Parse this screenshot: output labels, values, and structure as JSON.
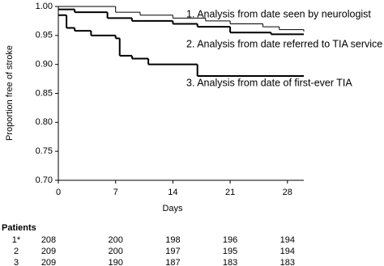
{
  "chart_data": {
    "type": "step",
    "xlabel": "Days",
    "ylabel": "Proportion free of stroke",
    "xlim": [
      0,
      30
    ],
    "ylim": [
      0.7,
      1.0
    ],
    "xticks": [
      0,
      7,
      14,
      21,
      28
    ],
    "yticks": [
      {
        "value": 0.7,
        "label": "0.70"
      },
      0.75,
      {
        "value": 0.8,
        "label": "0.80"
      },
      0.85,
      {
        "value": 0.9,
        "label": "0.90"
      },
      0.95,
      {
        "value": 1.0,
        "label": "1.00"
      }
    ],
    "series": [
      {
        "name": "1. Analysis from date seen by neurologist",
        "color": "#000",
        "width": 1,
        "x": [
          0,
          7,
          10,
          14,
          18,
          21,
          25,
          27,
          30
        ],
        "values": [
          1.0,
          0.99,
          0.985,
          0.98,
          0.975,
          0.97,
          0.965,
          0.96,
          0.957
        ]
      },
      {
        "name": "2. Analysis from date referred to TIA service",
        "color": "#000",
        "width": 2,
        "x": [
          0,
          2,
          6,
          9,
          14,
          17,
          21,
          26,
          30
        ],
        "values": [
          0.995,
          0.99,
          0.98,
          0.975,
          0.97,
          0.965,
          0.955,
          0.952,
          0.952
        ]
      },
      {
        "name": "3. Analysis from date of first-ever TIA",
        "color": "#000",
        "width": 2,
        "x": [
          0,
          1,
          2,
          4,
          7,
          7.5,
          9,
          11,
          17,
          30
        ],
        "values": [
          0.985,
          0.963,
          0.958,
          0.95,
          0.945,
          0.915,
          0.91,
          0.9,
          0.88,
          0.88
        ]
      }
    ]
  },
  "risk_table": {
    "title": "Patients",
    "rows": [
      {
        "label": "1*",
        "values": [
          "208",
          "200",
          "198",
          "196",
          "194"
        ]
      },
      {
        "label": "2",
        "values": [
          "209",
          "200",
          "197",
          "195",
          "194"
        ]
      },
      {
        "label": "3",
        "values": [
          "209",
          "190",
          "187",
          "183",
          "183"
        ]
      }
    ]
  }
}
